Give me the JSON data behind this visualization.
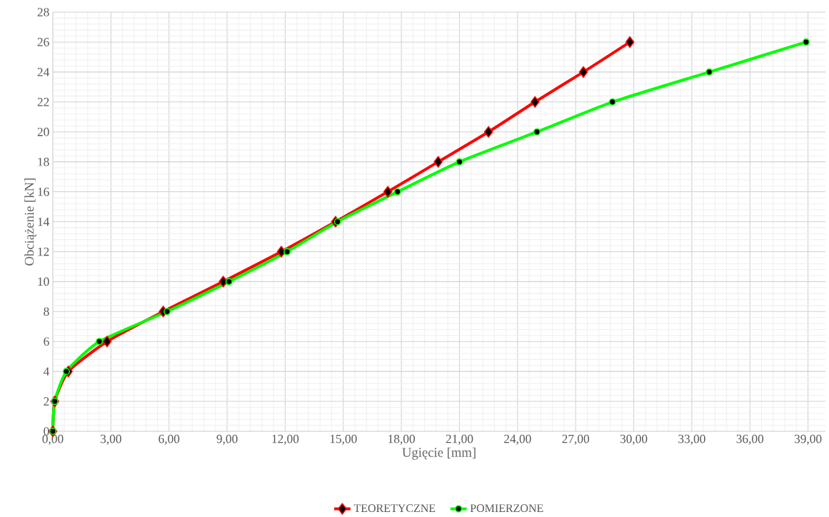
{
  "chart_data": {
    "type": "line",
    "xlabel": "Ugięcie [mm]",
    "ylabel": "Obciążenie [kN]",
    "xlim": [
      0,
      39.9
    ],
    "ylim": [
      0,
      28
    ],
    "xticks": [
      {
        "value": 0,
        "label": "0,00"
      },
      {
        "value": 3,
        "label": "3,00"
      },
      {
        "value": 6,
        "label": "6,00"
      },
      {
        "value": 9,
        "label": "9,00"
      },
      {
        "value": 12,
        "label": "12,00"
      },
      {
        "value": 15,
        "label": "15,00"
      },
      {
        "value": 18,
        "label": "18,00"
      },
      {
        "value": 21,
        "label": "21,00"
      },
      {
        "value": 24,
        "label": "24,00"
      },
      {
        "value": 27,
        "label": "27,00"
      },
      {
        "value": 30,
        "label": "30,00"
      },
      {
        "value": 33,
        "label": "33,00"
      },
      {
        "value": 36,
        "label": "36,00"
      },
      {
        "value": 39,
        "label": "39,00"
      }
    ],
    "yticks": [
      0,
      2,
      4,
      6,
      8,
      10,
      12,
      14,
      16,
      18,
      20,
      22,
      24,
      26,
      28
    ],
    "grid": true,
    "legend": "bottom",
    "line_style": "solid",
    "series": [
      {
        "name": "TEORETYCZNE",
        "color": "#ff0000",
        "marker": "diamond",
        "x": [
          0,
          0.1,
          0.8,
          2.8,
          5.7,
          8.8,
          11.8,
          14.6,
          17.3,
          19.9,
          22.5,
          24.9,
          27.4,
          29.8
        ],
        "values": [
          0,
          2,
          4,
          6,
          8,
          10,
          12,
          14,
          16,
          18,
          20,
          22,
          24,
          26
        ]
      },
      {
        "name": "POMIERZONE",
        "color": "#00ff00",
        "marker": "circle",
        "x": [
          0,
          0.1,
          0.7,
          2.4,
          5.9,
          9.1,
          12.1,
          14.7,
          17.8,
          21.0,
          25.0,
          28.9,
          33.9,
          38.9
        ],
        "values": [
          0,
          2,
          4,
          6,
          8,
          10,
          12,
          14,
          16,
          18,
          20,
          22,
          24,
          26
        ]
      }
    ]
  }
}
